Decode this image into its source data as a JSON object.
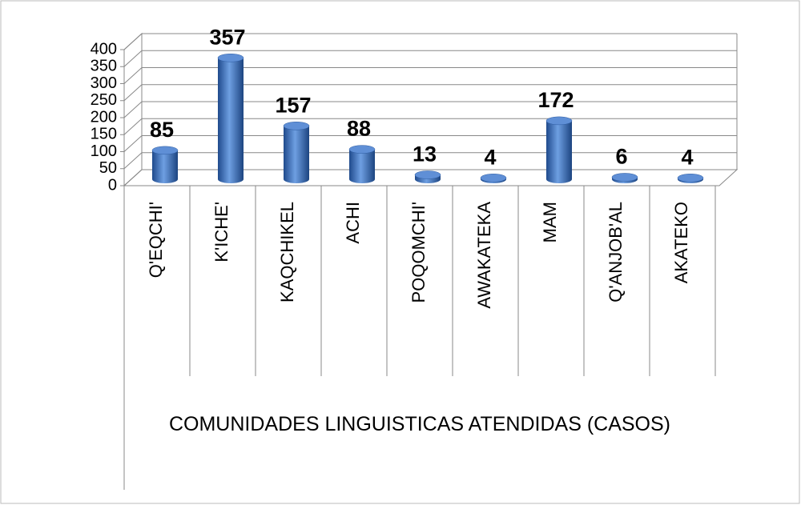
{
  "chart_data": {
    "type": "bar",
    "x_label": "COMUNIDADES LINGUISTICAS ATENDIDAS (CASOS)",
    "categories": [
      "Q'EQCHI'",
      "K'ICHE'",
      "KAQCHIKEL",
      "ACHI",
      "POQOMCHI'",
      "AWAKATEKA",
      "MAM",
      "Q'ANJOB'AL",
      "AKATEKO"
    ],
    "values": [
      85,
      357,
      157,
      88,
      13,
      4,
      172,
      6,
      4
    ],
    "color": "#3b6fc0",
    "ylim": [
      0,
      400
    ],
    "yticks": [
      0,
      50,
      100,
      150,
      200,
      250,
      300,
      350,
      400
    ],
    "grid": true
  }
}
